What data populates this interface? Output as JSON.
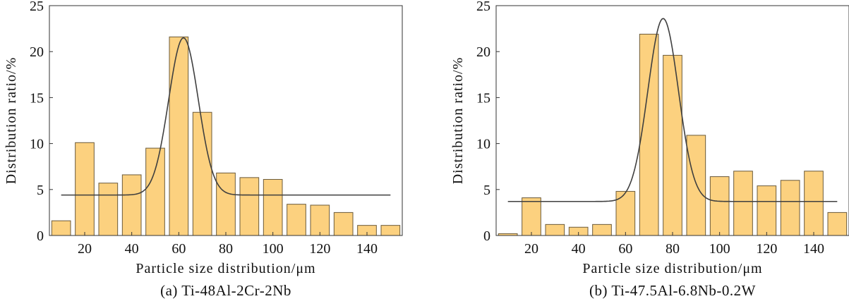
{
  "colors": {
    "bar_fill": "#fcd17f",
    "bar_stroke": "#6b5a3a",
    "curve": "#3f3f3f",
    "axis": "#333333"
  },
  "chart_data": [
    {
      "type": "bar",
      "caption": "(a) Ti-48Al-2Cr-2Nb",
      "xlabel": "Particle size distribution/μm",
      "ylabel": "Distribution ratio/%",
      "xlim": [
        5,
        155
      ],
      "ylim": [
        0,
        25
      ],
      "x_ticks": [
        20,
        40,
        60,
        80,
        100,
        120,
        140
      ],
      "y_ticks": [
        0,
        5,
        10,
        15,
        20,
        25
      ],
      "bar_width": 8,
      "bins": [
        10,
        20,
        30,
        40,
        50,
        60,
        70,
        80,
        90,
        100,
        110,
        120,
        130,
        140,
        150
      ],
      "values": [
        1.6,
        10.1,
        5.7,
        6.6,
        9.5,
        21.6,
        13.4,
        6.8,
        6.3,
        6.1,
        3.4,
        3.3,
        2.5,
        1.1,
        1.1
      ],
      "fit": {
        "type": "gaussian",
        "baseline": 4.4,
        "peak_x": 62,
        "peak_y": 21.5,
        "sigma": 6.3,
        "x_start": 10,
        "x_end": 150
      }
    },
    {
      "type": "bar",
      "caption": "(b) Ti-47.5Al-6.8Nb-0.2W",
      "xlabel": "Particle size distribution/μm",
      "ylabel": "Distribution ratio/%",
      "xlim": [
        5,
        155
      ],
      "ylim": [
        0,
        25
      ],
      "x_ticks": [
        20,
        40,
        60,
        80,
        100,
        120,
        140
      ],
      "y_ticks": [
        0,
        5,
        10,
        15,
        20,
        25
      ],
      "bar_width": 8,
      "bins": [
        10,
        20,
        30,
        40,
        50,
        60,
        70,
        80,
        90,
        100,
        110,
        120,
        130,
        140,
        150
      ],
      "values": [
        0.2,
        4.1,
        1.2,
        0.9,
        1.2,
        4.8,
        21.9,
        19.6,
        10.9,
        6.4,
        7.0,
        5.4,
        6.0,
        7.0,
        2.5
      ],
      "fit": {
        "type": "gaussian",
        "baseline": 3.7,
        "peak_x": 76,
        "peak_y": 23.6,
        "sigma": 6.5,
        "x_start": 10,
        "x_end": 150
      }
    }
  ]
}
